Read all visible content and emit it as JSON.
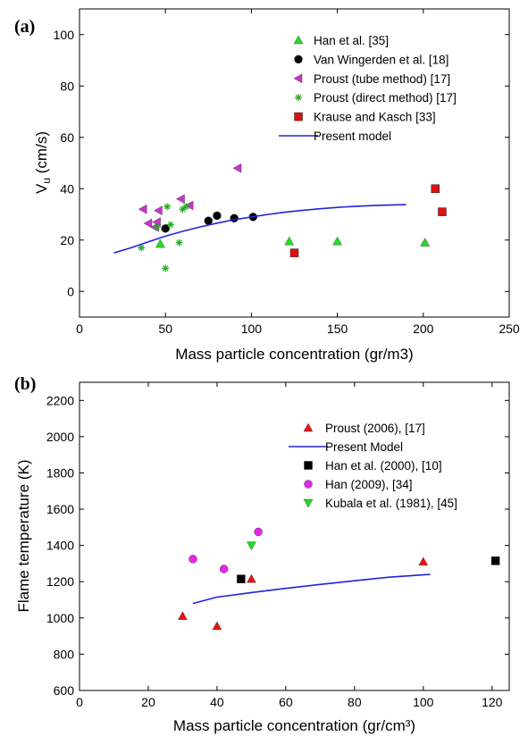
{
  "chart_data": [
    {
      "type": "scatter",
      "panel_label": "(a)",
      "xlabel": "Mass particle concentration (gr/m3)",
      "ylabel_main": "V",
      "ylabel_sub": "u",
      "ylabel_rest": " (cm/s)",
      "xlim": [
        0,
        250
      ],
      "ylim": [
        -10,
        110
      ],
      "xticks": [
        0,
        50,
        100,
        150,
        200,
        250
      ],
      "yticks": [
        0,
        20,
        40,
        60,
        80,
        100
      ],
      "legend_position": "top-right",
      "series": [
        {
          "name": "Han et al. [35]",
          "marker": "triangle-up",
          "color": "#22dd22",
          "points": [
            [
              47,
              18.5
            ],
            [
              122,
              19.5
            ],
            [
              150,
              19.5
            ],
            [
              201,
              19
            ]
          ]
        },
        {
          "name": "Van Wingerden et al. [18]",
          "marker": "circle",
          "color": "#000000",
          "points": [
            [
              50,
              24.5
            ],
            [
              75,
              27.5
            ],
            [
              80,
              29.5
            ],
            [
              90,
              28.5
            ],
            [
              101,
              29
            ]
          ]
        },
        {
          "name": "Proust (tube method) [17]",
          "marker": "triangle-left",
          "color": "#cc33cc",
          "points": [
            [
              37,
              32
            ],
            [
              40,
              26.5
            ],
            [
              44,
              25
            ],
            [
              45,
              27
            ],
            [
              46,
              31.5
            ],
            [
              59,
              36
            ],
            [
              64,
              33.5
            ],
            [
              92,
              48
            ]
          ]
        },
        {
          "name": "Proust (direct method) [17]",
          "marker": "asterisk",
          "color": "#22aa22",
          "points": [
            [
              36,
              17
            ],
            [
              45,
              25
            ],
            [
              50,
              9
            ],
            [
              51,
              33
            ],
            [
              53,
              26
            ],
            [
              58,
              19
            ],
            [
              60,
              32
            ],
            [
              62,
              33
            ]
          ]
        },
        {
          "name": "Krause and Kasch [33]",
          "marker": "square",
          "color": "#dd1111",
          "points": [
            [
              125,
              15
            ],
            [
              207,
              40
            ],
            [
              211,
              31
            ]
          ]
        },
        {
          "name": "Present model",
          "marker": "line",
          "color": "#2222dd",
          "points": [
            [
              20,
              15
            ],
            [
              30,
              17
            ],
            [
              40,
              19.3
            ],
            [
              50,
              21.5
            ],
            [
              60,
              23.4
            ],
            [
              70,
              25.1
            ],
            [
              80,
              26.6
            ],
            [
              90,
              27.9
            ],
            [
              100,
              29
            ],
            [
              110,
              30
            ],
            [
              120,
              30.9
            ],
            [
              130,
              31.6
            ],
            [
              140,
              32.2
            ],
            [
              150,
              32.7
            ],
            [
              160,
              33.1
            ],
            [
              170,
              33.4
            ],
            [
              180,
              33.6
            ],
            [
              190,
              33.8
            ]
          ]
        }
      ]
    },
    {
      "type": "scatter",
      "panel_label": "(b)",
      "xlabel": "Mass particle concentration (gr/cm³)",
      "ylabel": "Flame temperature (K)",
      "xlim": [
        0,
        125
      ],
      "ylim": [
        600,
        2300
      ],
      "xticks": [
        0,
        20,
        40,
        60,
        80,
        100,
        120
      ],
      "yticks": [
        600,
        800,
        1000,
        1200,
        1400,
        1600,
        1800,
        2000,
        2200
      ],
      "legend_position": "top-right",
      "series": [
        {
          "name": "Proust (2006), [17]",
          "marker": "triangle-up",
          "color": "#ee1111",
          "points": [
            [
              30,
              1010
            ],
            [
              40,
              955
            ],
            [
              50,
              1215
            ],
            [
              100,
              1310
            ]
          ]
        },
        {
          "name": "Present Model",
          "marker": "line",
          "color": "#2222dd",
          "points": [
            [
              33,
              1080
            ],
            [
              40,
              1115
            ],
            [
              50,
              1140
            ],
            [
              60,
              1163
            ],
            [
              70,
              1185
            ],
            [
              80,
              1205
            ],
            [
              90,
              1225
            ],
            [
              102,
              1240
            ]
          ]
        },
        {
          "name": "Han et al. (2000), [10]",
          "marker": "square",
          "color": "#000000",
          "points": [
            [
              47,
              1215
            ],
            [
              121,
              1315
            ]
          ]
        },
        {
          "name": "Han (2009), [34]",
          "marker": "circle",
          "color": "#ee22ee",
          "points": [
            [
              33,
              1325
            ],
            [
              42,
              1270
            ],
            [
              52,
              1475
            ]
          ]
        },
        {
          "name": "Kubala et al. (1981), [45]",
          "marker": "triangle-down",
          "color": "#22dd22",
          "points": [
            [
              50,
              1400
            ]
          ]
        }
      ]
    }
  ]
}
